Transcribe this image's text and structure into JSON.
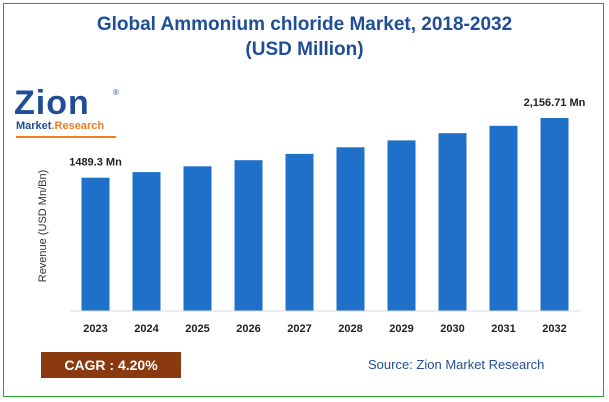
{
  "title_line1": "Global Ammonium chloride Market, 2018-2032",
  "title_line2": "(USD Million)",
  "logo": {
    "top": "Zion",
    "bottom_a": "Market",
    "bottom_b": ".Research",
    "reg": "®"
  },
  "cagr": "CAGR :  4.20%",
  "source": "Source: Zion Market Research",
  "colors": {
    "bar": "#1f70c9",
    "title": "#1f4e96",
    "cagr_bg": "#8b3a0f",
    "border": "#2ca02c"
  },
  "chart_data": {
    "type": "bar",
    "categories": [
      "2023",
      "2024",
      "2025",
      "2026",
      "2027",
      "2028",
      "2029",
      "2030",
      "2031",
      "2032"
    ],
    "values": [
      1489.3,
      1551.85,
      1617.03,
      1684.95,
      1755.71,
      1829.45,
      1906.29,
      1986.35,
      2069.78,
      2156.71
    ],
    "ylabel": "Revenue (USD Mn/Bn)",
    "ylim": [
      0,
      2156.71
    ],
    "data_labels": [
      {
        "index": 0,
        "text": "1489.3 Mn"
      },
      {
        "index": 9,
        "text": "2,156.71 Mn"
      }
    ],
    "grid": false,
    "legend": "none"
  }
}
